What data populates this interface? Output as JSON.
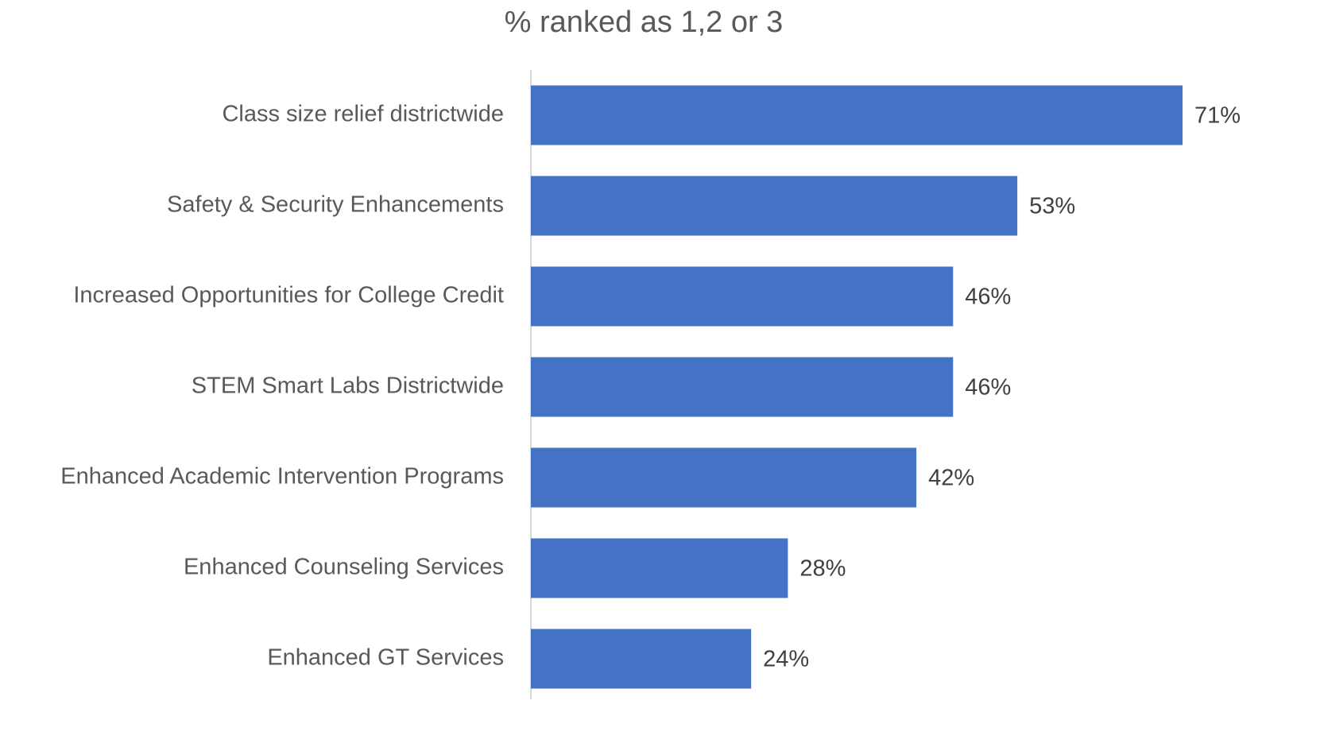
{
  "chart_data": {
    "type": "bar",
    "orientation": "horizontal",
    "title": "% ranked as 1,2 or 3",
    "categories": [
      "Class size relief districtwide",
      "Safety & Security Enhancements",
      "Increased Opportunities for College Credit",
      "STEM Smart Labs Districtwide",
      "Enhanced Academic Intervention Programs",
      "Enhanced Counseling Services",
      "Enhanced GT Services"
    ],
    "values": [
      71,
      53,
      46,
      46,
      42,
      28,
      24
    ],
    "value_labels": [
      "71%",
      "53%",
      "46%",
      "46%",
      "42%",
      "28%",
      "24%"
    ],
    "color": "#4472c4"
  }
}
